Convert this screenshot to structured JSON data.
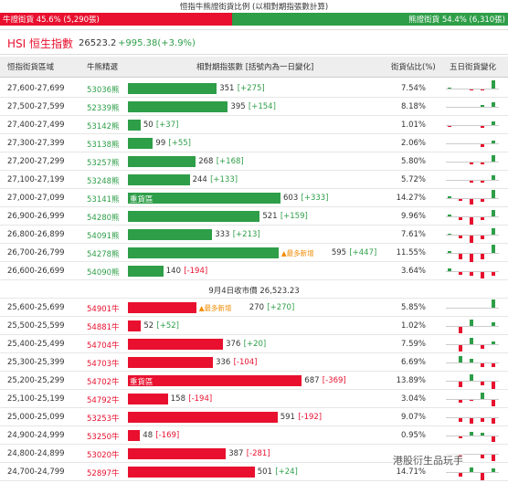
{
  "header": {
    "title": "恒指牛熊證街貨比例 (以相對期指張數計算)",
    "bull_pct": 45.6,
    "bull_label": "牛證街貨 45.6% (5,290張)",
    "bear_label": "熊證街貨 54.4% (6,310張)",
    "index_name": "HSI 恒生指數",
    "index_value": "26523.2",
    "index_change": "+995.38(+3.9%)"
  },
  "columns": [
    "恒指街貨區域",
    "牛熊精選",
    "相對期指張數 [括號內為一日變化]",
    "街貨佔比(%)",
    "五日街貨變化"
  ],
  "bear_rows": [
    {
      "region": "27,600-27,699",
      "code": "53036熊",
      "count": 351,
      "change": "[+275]",
      "pct": "7.54%",
      "five_day": [
        1,
        0,
        -1,
        -1,
        8
      ]
    },
    {
      "region": "27,500-27,599",
      "code": "52339熊",
      "count": 395,
      "change": "[+154]",
      "pct": "8.18%",
      "five_day": [
        0,
        0,
        0,
        2,
        5
      ]
    },
    {
      "region": "27,400-27,499",
      "code": "53142熊",
      "count": 50,
      "change": "[+37]",
      "pct": "1.01%",
      "five_day": [
        -1,
        0,
        0,
        -2,
        4
      ]
    },
    {
      "region": "27,300-27,399",
      "code": "53138熊",
      "count": 99,
      "change": "[+55]",
      "pct": "2.06%",
      "five_day": [
        0,
        0,
        0,
        -3,
        3
      ]
    },
    {
      "region": "27,200-27,299",
      "code": "53257熊",
      "count": 268,
      "change": "[+168]",
      "pct": "5.80%",
      "five_day": [
        0,
        0,
        -2,
        -2,
        6
      ]
    },
    {
      "region": "27,100-27,199",
      "code": "53248熊",
      "count": 244,
      "change": "[+133]",
      "pct": "5.72%",
      "five_day": [
        0,
        0,
        -2,
        -2,
        5
      ]
    },
    {
      "region": "27,000-27,099",
      "code": "53141熊",
      "count": 603,
      "change": "[+333]",
      "pct": "14.27%",
      "tag": "重貨區",
      "five_day": [
        2,
        -2,
        -5,
        -3,
        8
      ]
    },
    {
      "region": "26,900-26,999",
      "code": "54280熊",
      "count": 521,
      "change": "[+159]",
      "pct": "9.96%",
      "five_day": [
        2,
        -3,
        -7,
        -3,
        6
      ]
    },
    {
      "region": "26,800-26,899",
      "code": "54091熊",
      "count": 333,
      "change": "[+213]",
      "pct": "7.61%",
      "five_day": [
        1,
        -3,
        -7,
        -4,
        6
      ]
    },
    {
      "region": "26,700-26,799",
      "code": "54278熊",
      "count": 595,
      "change": "[+447]",
      "pct": "11.55%",
      "tag": "▲最多新增",
      "five_day": [
        2,
        -5,
        -8,
        -5,
        8
      ]
    },
    {
      "region": "26,600-26,699",
      "code": "54090熊",
      "count": 140,
      "change": "[-194]",
      "pct": "3.64%",
      "five_day": [
        3,
        -3,
        -4,
        -6,
        -4
      ]
    }
  ],
  "separator": "9月4日收市價 26,523.23",
  "bull_rows": [
    {
      "region": "25,600-25,699",
      "code": "54901牛",
      "count": 270,
      "change": "[+270]",
      "pct": "5.85%",
      "tag": "▲最多新增",
      "five_day": [
        0,
        0,
        0,
        0,
        8
      ]
    },
    {
      "region": "25,500-25,599",
      "code": "54881牛",
      "count": 52,
      "change": "[+52]",
      "pct": "1.02%",
      "five_day": [
        0,
        -6,
        6,
        0,
        4
      ]
    },
    {
      "region": "25,400-25,499",
      "code": "54704牛",
      "count": 376,
      "change": "[+20]",
      "pct": "7.59%",
      "five_day": [
        0,
        -6,
        6,
        -4,
        3
      ]
    },
    {
      "region": "25,300-25,399",
      "code": "54703牛",
      "count": 336,
      "change": "[-104]",
      "pct": "6.69%",
      "five_day": [
        0,
        6,
        4,
        -4,
        -4
      ]
    },
    {
      "region": "25,200-25,299",
      "code": "54702牛",
      "count": 687,
      "change": "[-369]",
      "pct": "13.89%",
      "tag": "重貨區",
      "five_day": [
        0,
        -5,
        6,
        -4,
        -7
      ]
    },
    {
      "region": "25,100-25,199",
      "code": "54792牛",
      "count": 158,
      "change": "[-194]",
      "pct": "3.04%",
      "five_day": [
        0,
        -3,
        -1,
        6,
        -6
      ]
    },
    {
      "region": "25,000-25,099",
      "code": "53253牛",
      "count": 591,
      "change": "[-192]",
      "pct": "9.07%",
      "five_day": [
        0,
        -4,
        -5,
        -4,
        -5
      ]
    },
    {
      "region": "24,900-24,999",
      "code": "53250牛",
      "count": 48,
      "change": "[-169]",
      "pct": "0.95%",
      "five_day": [
        0,
        -2,
        4,
        3,
        -5
      ]
    },
    {
      "region": "24,800-24,899",
      "code": "53020牛",
      "count": 387,
      "change": "[-281]",
      "five_day": [
        0,
        -3,
        0,
        -4,
        -6
      ]
    },
    {
      "region": "24,700-24,799",
      "code": "52897牛",
      "count": 501,
      "change": "[+24]",
      "pct": "14.71%",
      "five_day": [
        0,
        -4,
        5,
        -7,
        4
      ]
    }
  ],
  "watermark": "港股衍生品玩手"
}
